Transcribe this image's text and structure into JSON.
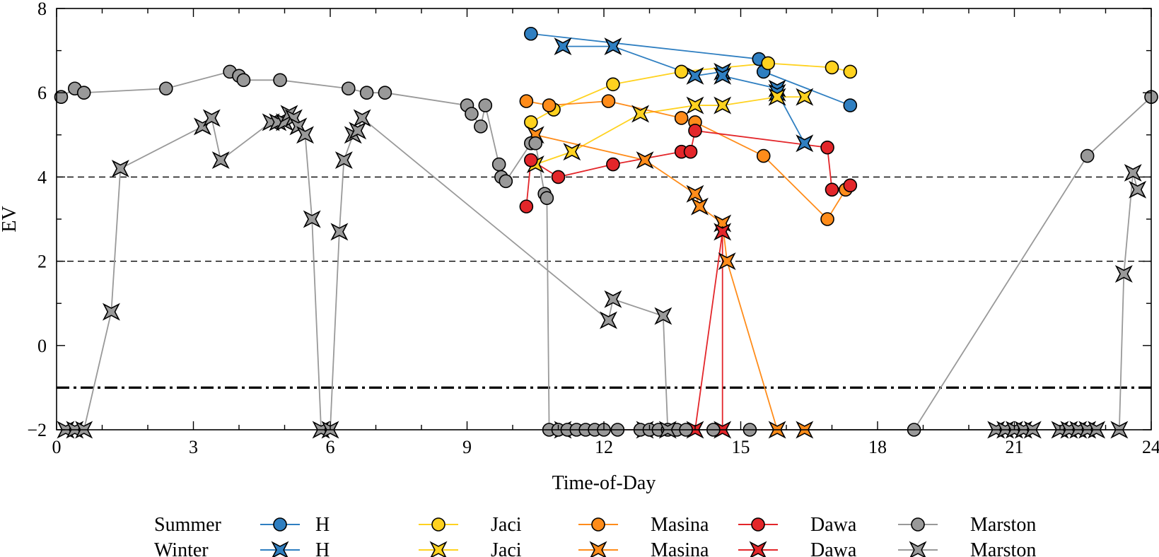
{
  "chart_data": {
    "type": "scatter",
    "xlabel": "Time-of-Day",
    "ylabel": "EV",
    "xlim": [
      0,
      24
    ],
    "ylim": [
      -2,
      8
    ],
    "xticks": [
      0,
      3,
      6,
      9,
      12,
      15,
      18,
      21,
      24
    ],
    "yticks": [
      -2,
      0,
      2,
      4,
      6,
      8
    ],
    "reference_lines": [
      {
        "y": 4,
        "style": "dashed"
      },
      {
        "y": 2,
        "style": "dashed"
      },
      {
        "y": -1,
        "style": "dash-dot"
      }
    ],
    "legend": {
      "placement": "bottom",
      "rows": [
        {
          "label": "Summer",
          "marker": "circle"
        },
        {
          "label": "Winter",
          "marker": "star"
        }
      ]
    },
    "series": [
      {
        "name": "H",
        "season": "Summer",
        "color": "#2f7fc1",
        "marker": "circle",
        "points": [
          [
            10.4,
            7.4
          ],
          [
            15.4,
            6.8
          ],
          [
            15.5,
            6.5
          ],
          [
            17.4,
            5.7
          ]
        ]
      },
      {
        "name": "H",
        "season": "Winter",
        "color": "#2f7fc1",
        "marker": "star",
        "points": [
          [
            11.1,
            7.1
          ],
          [
            12.2,
            7.1
          ],
          [
            14.0,
            6.4
          ],
          [
            14.6,
            6.5
          ],
          [
            14.6,
            6.4
          ],
          [
            15.8,
            6.1
          ],
          [
            15.8,
            6.0
          ],
          [
            16.4,
            4.8
          ]
        ]
      },
      {
        "name": "Jaci",
        "season": "Summer",
        "color": "#ffd21f",
        "marker": "circle",
        "points": [
          [
            10.4,
            5.3
          ],
          [
            10.9,
            5.6
          ],
          [
            12.2,
            6.2
          ],
          [
            13.7,
            6.5
          ],
          [
            15.6,
            6.7
          ],
          [
            17.0,
            6.6
          ],
          [
            17.4,
            6.5
          ]
        ]
      },
      {
        "name": "Jaci",
        "season": "Winter",
        "color": "#ffd21f",
        "marker": "star",
        "points": [
          [
            10.5,
            4.3
          ],
          [
            11.3,
            4.6
          ],
          [
            12.8,
            5.5
          ],
          [
            14.0,
            5.7
          ],
          [
            14.6,
            5.7
          ],
          [
            15.8,
            5.9
          ],
          [
            16.4,
            5.9
          ]
        ]
      },
      {
        "name": "Masina",
        "season": "Summer",
        "color": "#ff8c1a",
        "marker": "circle",
        "points": [
          [
            10.3,
            5.8
          ],
          [
            10.8,
            5.7
          ],
          [
            12.1,
            5.8
          ],
          [
            13.7,
            5.4
          ],
          [
            14.0,
            5.3
          ],
          [
            15.5,
            4.5
          ],
          [
            16.9,
            3.0
          ],
          [
            17.3,
            3.7
          ]
        ]
      },
      {
        "name": "Masina",
        "season": "Winter",
        "color": "#ff8c1a",
        "marker": "star",
        "points": [
          [
            10.5,
            5.0
          ],
          [
            12.9,
            4.4
          ],
          [
            14.0,
            3.6
          ],
          [
            14.1,
            3.3
          ],
          [
            14.6,
            2.9
          ],
          [
            14.7,
            2.0
          ],
          [
            15.8,
            -2.0
          ],
          [
            16.4,
            -2.0
          ]
        ]
      },
      {
        "name": "Dawa",
        "season": "Summer",
        "color": "#e3262a",
        "marker": "circle",
        "points": [
          [
            10.3,
            3.3
          ],
          [
            10.4,
            4.4
          ],
          [
            11.0,
            4.0
          ],
          [
            12.2,
            4.3
          ],
          [
            13.7,
            4.6
          ],
          [
            13.9,
            4.6
          ],
          [
            14.0,
            5.1
          ],
          [
            16.9,
            4.7
          ],
          [
            17.0,
            3.7
          ],
          [
            17.4,
            3.8
          ]
        ]
      },
      {
        "name": "Dawa",
        "season": "Winter",
        "color": "#e3262a",
        "marker": "star",
        "points": [
          [
            11.1,
            -2.0
          ],
          [
            12.9,
            -2.0
          ],
          [
            14.0,
            -2.0
          ],
          [
            14.6,
            2.7
          ],
          [
            14.6,
            -2.0
          ]
        ]
      },
      {
        "name": "Marston",
        "season": "Summer",
        "color": "#999999",
        "marker": "circle",
        "points": [
          [
            0.1,
            5.9
          ],
          [
            0.4,
            6.1
          ],
          [
            0.6,
            6.0
          ],
          [
            2.4,
            6.1
          ],
          [
            3.8,
            6.5
          ],
          [
            4.0,
            6.4
          ],
          [
            4.1,
            6.3
          ],
          [
            4.9,
            6.3
          ],
          [
            6.4,
            6.1
          ],
          [
            6.8,
            6.0
          ],
          [
            7.2,
            6.0
          ],
          [
            9.0,
            5.7
          ],
          [
            9.1,
            5.5
          ],
          [
            9.3,
            5.2
          ],
          [
            9.4,
            5.7
          ],
          [
            9.7,
            4.3
          ],
          [
            9.75,
            4.0
          ],
          [
            9.85,
            3.9
          ],
          [
            10.4,
            4.8
          ],
          [
            10.5,
            4.8
          ],
          [
            10.7,
            3.6
          ],
          [
            10.75,
            3.5
          ],
          [
            10.8,
            -2.0
          ],
          [
            11.0,
            -2.0
          ],
          [
            11.2,
            -2.0
          ],
          [
            11.4,
            -2.0
          ],
          [
            11.6,
            -2.0
          ],
          [
            11.8,
            -2.0
          ],
          [
            12.0,
            -2.0
          ],
          [
            12.3,
            -2.0
          ],
          [
            12.8,
            -2.0
          ],
          [
            13.0,
            -2.0
          ],
          [
            13.2,
            -2.0
          ],
          [
            13.4,
            -2.0
          ],
          [
            13.6,
            -2.0
          ],
          [
            13.8,
            -2.0
          ],
          [
            14.4,
            -2.0
          ],
          [
            15.2,
            -2.0
          ],
          [
            18.8,
            -2.0
          ],
          [
            22.6,
            4.5
          ],
          [
            24.0,
            5.9
          ]
        ]
      },
      {
        "name": "Marston",
        "season": "Winter",
        "color": "#999999",
        "marker": "star",
        "points": [
          [
            0.2,
            -2.0
          ],
          [
            0.4,
            -2.0
          ],
          [
            0.6,
            -2.0
          ],
          [
            1.2,
            0.8
          ],
          [
            1.4,
            4.2
          ],
          [
            3.2,
            5.2
          ],
          [
            3.4,
            5.4
          ],
          [
            3.6,
            4.4
          ],
          [
            4.7,
            5.3
          ],
          [
            4.85,
            5.3
          ],
          [
            5.0,
            5.3
          ],
          [
            5.1,
            5.5
          ],
          [
            5.2,
            5.4
          ],
          [
            5.3,
            5.2
          ],
          [
            5.45,
            5.0
          ],
          [
            5.6,
            3.0
          ],
          [
            5.8,
            -2.0
          ],
          [
            6.0,
            -2.0
          ],
          [
            6.2,
            2.7
          ],
          [
            6.3,
            4.4
          ],
          [
            6.5,
            5.0
          ],
          [
            6.6,
            5.1
          ],
          [
            6.7,
            5.4
          ],
          [
            12.1,
            0.6
          ],
          [
            12.2,
            1.1
          ],
          [
            13.3,
            0.7
          ],
          [
            13.4,
            -2.0
          ],
          [
            20.6,
            -2.0
          ],
          [
            20.8,
            -2.0
          ],
          [
            21.0,
            -2.0
          ],
          [
            21.2,
            -2.0
          ],
          [
            21.4,
            -2.0
          ],
          [
            22.0,
            -2.0
          ],
          [
            22.2,
            -2.0
          ],
          [
            22.4,
            -2.0
          ],
          [
            22.6,
            -2.0
          ],
          [
            22.8,
            -2.0
          ],
          [
            23.3,
            -2.0
          ],
          [
            23.4,
            1.7
          ],
          [
            23.6,
            4.1
          ],
          [
            23.7,
            3.7
          ]
        ]
      }
    ]
  }
}
